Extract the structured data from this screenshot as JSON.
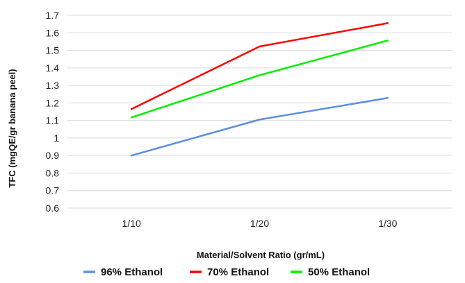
{
  "chart_data": {
    "type": "line",
    "title": "",
    "xlabel": "Material/Solvent Ratio (gr/mL)",
    "ylabel": "TFC (mgQE/gr banana peel)",
    "categories": [
      "1/10",
      "1/20",
      "1/30"
    ],
    "ylim": [
      0.6,
      1.7
    ],
    "yticks": [
      "0.6",
      "0.7",
      "0.8",
      "0.9",
      "1",
      "1.1",
      "1.2",
      "1.3",
      "1.4",
      "1.5",
      "1.6",
      "1.7"
    ],
    "grid": true,
    "legend_position": "bottom",
    "series": [
      {
        "name": "96% Ethanol",
        "color": "#5b8fdf",
        "values": [
          0.9,
          1.105,
          1.228
        ]
      },
      {
        "name": "70% Ethanol",
        "color": "#ff0000",
        "values": [
          1.165,
          1.522,
          1.655
        ]
      },
      {
        "name": "50% Ethanol",
        "color": "#00ee00",
        "values": [
          1.117,
          1.358,
          1.556
        ]
      }
    ]
  }
}
